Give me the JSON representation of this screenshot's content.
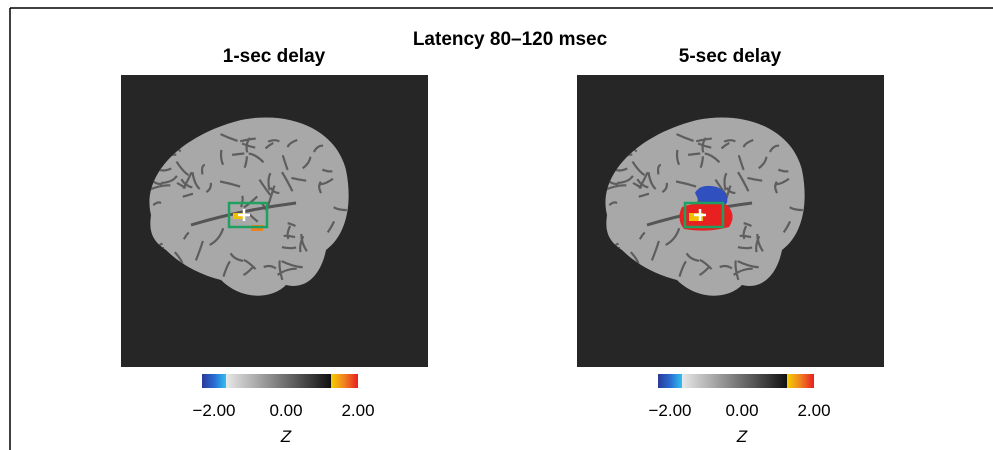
{
  "title": "Latency 80–120 msec",
  "panels": [
    {
      "title": "1-sec delay",
      "colorbar": {
        "ticks": [
          "−2.00",
          "0.00",
          "2.00"
        ],
        "label": "Z"
      }
    },
    {
      "title": "5-sec delay",
      "colorbar": {
        "ticks": [
          "−2.00",
          "0.00",
          "2.00"
        ],
        "label": "Z"
      }
    }
  ]
}
